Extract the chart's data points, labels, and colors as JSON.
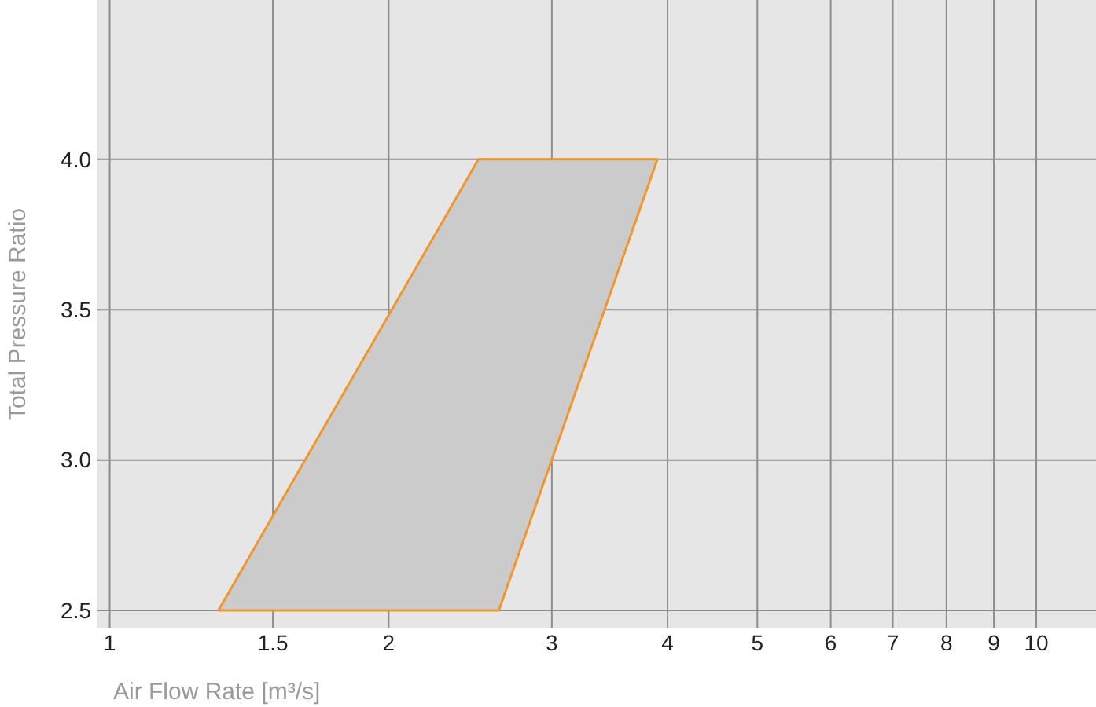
{
  "chart_data": {
    "type": "area",
    "xlabel": "Air Flow Rate [m³/s]",
    "ylabel": "Total Pressure Ratio",
    "log": "x",
    "grid": true,
    "xlim": [
      0.97,
      11.6
    ],
    "xticks": [
      1,
      1.5,
      2,
      3,
      4,
      5,
      6,
      7,
      8,
      9,
      10
    ],
    "ylim": [
      2.44,
      4.53
    ],
    "yticks": [
      {
        "value": 2.5,
        "label": "2.5"
      },
      {
        "value": 3,
        "label": "3.0"
      },
      3.5,
      {
        "value": 4,
        "label": "4.0"
      }
    ],
    "series": [
      {
        "color": "#f0962d",
        "x": [
          1.31,
          2.5,
          3.9,
          2.63,
          1.31
        ],
        "values": [
          2.5,
          4,
          4,
          2.5,
          2.5
        ]
      }
    ]
  }
}
